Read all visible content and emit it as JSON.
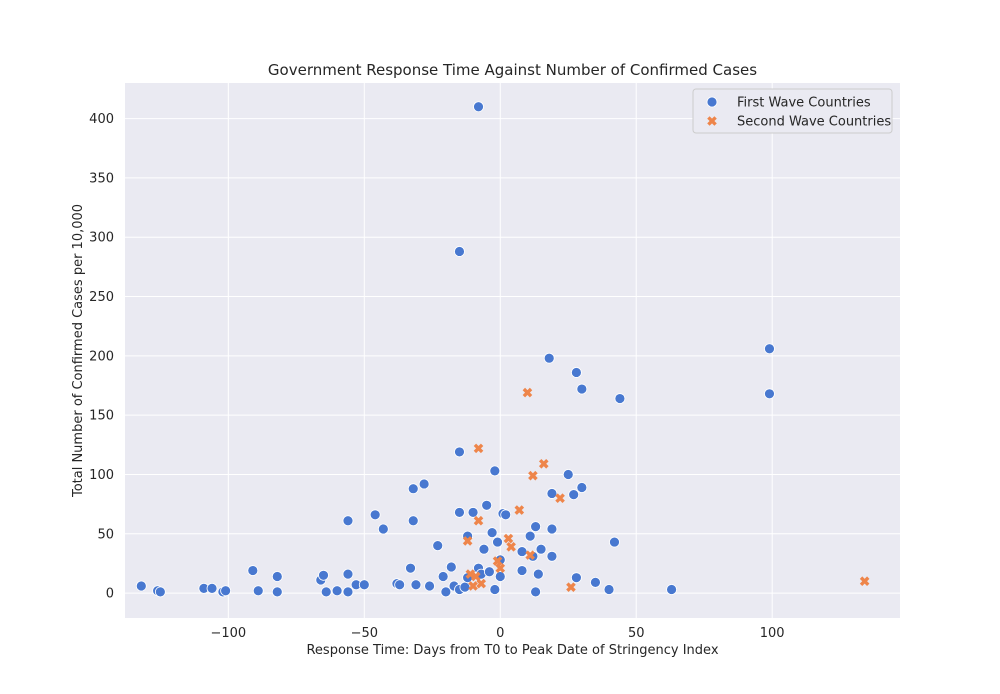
{
  "chart_data": {
    "type": "scatter",
    "title": "Government Response Time Against Number of Confirmed Cases",
    "xlabel": "Response Time: Days from T0 to Peak Date of Stringency Index",
    "ylabel": "Total Number of Confirmed Cases per 10,000",
    "xlim": [
      -138,
      147
    ],
    "ylim": [
      -21,
      430
    ],
    "xticks": [
      -100,
      -50,
      0,
      50,
      100
    ],
    "yticks": [
      0,
      50,
      100,
      150,
      200,
      250,
      300,
      350,
      400
    ],
    "grid": true,
    "legend_position": "top-right",
    "series": [
      {
        "name": "First Wave Countries",
        "marker": "circle",
        "color": "#4878d0",
        "points": [
          [
            -132,
            6
          ],
          [
            -126,
            2
          ],
          [
            -125,
            1
          ],
          [
            -109,
            4
          ],
          [
            -106,
            4
          ],
          [
            -102,
            1
          ],
          [
            -101,
            2
          ],
          [
            -91,
            19
          ],
          [
            -89,
            2
          ],
          [
            -82,
            14
          ],
          [
            -82,
            1
          ],
          [
            -66,
            11
          ],
          [
            -65,
            15
          ],
          [
            -64,
            1
          ],
          [
            -60,
            2
          ],
          [
            -56,
            61
          ],
          [
            -56,
            16
          ],
          [
            -56,
            1
          ],
          [
            -53,
            7
          ],
          [
            -50,
            7
          ],
          [
            -46,
            66
          ],
          [
            -43,
            54
          ],
          [
            -38,
            8
          ],
          [
            -37,
            7
          ],
          [
            -33,
            21
          ],
          [
            -32,
            88
          ],
          [
            -32,
            61
          ],
          [
            -31,
            7
          ],
          [
            -28,
            92
          ],
          [
            -26,
            6
          ],
          [
            -23,
            40
          ],
          [
            -21,
            14
          ],
          [
            -20,
            1
          ],
          [
            -18,
            22
          ],
          [
            -17,
            6
          ],
          [
            -15,
            288
          ],
          [
            -15,
            119
          ],
          [
            -15,
            68
          ],
          [
            -15,
            3
          ],
          [
            -13,
            5
          ],
          [
            -12,
            48
          ],
          [
            -12,
            13
          ],
          [
            -10,
            68
          ],
          [
            -8,
            410
          ],
          [
            -8,
            21
          ],
          [
            -7,
            16
          ],
          [
            -6,
            37
          ],
          [
            -5,
            74
          ],
          [
            -4,
            18
          ],
          [
            -3,
            51
          ],
          [
            -2,
            103
          ],
          [
            -2,
            3
          ],
          [
            -1,
            43
          ],
          [
            0,
            28
          ],
          [
            0,
            14
          ],
          [
            1,
            67
          ],
          [
            2,
            66
          ],
          [
            8,
            35
          ],
          [
            8,
            19
          ],
          [
            11,
            48
          ],
          [
            12,
            31
          ],
          [
            13,
            56
          ],
          [
            13,
            1
          ],
          [
            14,
            16
          ],
          [
            15,
            37
          ],
          [
            18,
            198
          ],
          [
            19,
            84
          ],
          [
            19,
            54
          ],
          [
            19,
            31
          ],
          [
            25,
            100
          ],
          [
            27,
            83
          ],
          [
            28,
            186
          ],
          [
            28,
            13
          ],
          [
            30,
            172
          ],
          [
            30,
            89
          ],
          [
            35,
            9
          ],
          [
            40,
            3
          ],
          [
            42,
            43
          ],
          [
            44,
            164
          ],
          [
            63,
            3
          ],
          [
            99,
            206
          ],
          [
            99,
            168
          ]
        ]
      },
      {
        "name": "Second Wave Countries",
        "marker": "x",
        "color": "#ee854a",
        "points": [
          [
            -12,
            44
          ],
          [
            -11,
            16
          ],
          [
            -10,
            6
          ],
          [
            -9,
            14
          ],
          [
            -8,
            122
          ],
          [
            -8,
            61
          ],
          [
            -7,
            8
          ],
          [
            -1,
            27
          ],
          [
            0,
            21
          ],
          [
            3,
            46
          ],
          [
            4,
            39
          ],
          [
            7,
            70
          ],
          [
            10,
            169
          ],
          [
            11,
            32
          ],
          [
            12,
            99
          ],
          [
            16,
            109
          ],
          [
            22,
            80
          ],
          [
            26,
            5
          ],
          [
            134,
            10
          ]
        ]
      }
    ]
  }
}
